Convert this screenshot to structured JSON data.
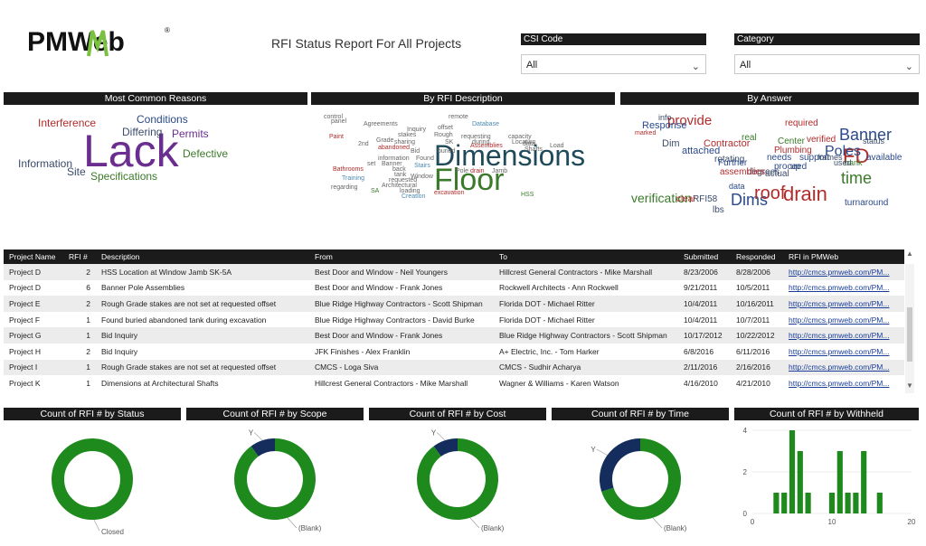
{
  "header": {
    "logo_text": "PMWeb",
    "logo_mark": "®",
    "title": "RFI Status Report For All Projects"
  },
  "filters": [
    {
      "label": "CSI Code",
      "value": "All"
    },
    {
      "label": "Category",
      "value": "All"
    }
  ],
  "clouds": {
    "reasons": {
      "title": "Most Common Reasons",
      "words": [
        {
          "text": "Lack",
          "color": "#6b2d8f"
        },
        {
          "text": "Interference",
          "color": "#b22b2b"
        },
        {
          "text": "Conditions",
          "color": "#2a4a8a"
        },
        {
          "text": "Differing",
          "color": "#3b4b6b"
        },
        {
          "text": "Permits",
          "color": "#6b2d8f"
        },
        {
          "text": "Defective",
          "color": "#3a7a2a"
        },
        {
          "text": "Information",
          "color": "#3b4b6b"
        },
        {
          "text": "Site",
          "color": "#3b4b6b"
        },
        {
          "text": "Specifications",
          "color": "#3a7a2a"
        }
      ]
    },
    "description": {
      "title": "By RFI Description",
      "words": [
        {
          "text": "Dimensions",
          "color": "#1f4a5a"
        },
        {
          "text": "Floor",
          "color": "#3a7a2a"
        },
        {
          "text": "control",
          "color": "#666"
        },
        {
          "text": "panel",
          "color": "#666"
        },
        {
          "text": "Agreements",
          "color": "#666"
        },
        {
          "text": "Inquiry",
          "color": "#666"
        },
        {
          "text": "remote",
          "color": "#666"
        },
        {
          "text": "Database",
          "color": "#4a8ab0"
        },
        {
          "text": "Paint",
          "color": "#b22b2b"
        },
        {
          "text": "stakes",
          "color": "#666"
        },
        {
          "text": "offset",
          "color": "#666"
        },
        {
          "text": "Rough",
          "color": "#666"
        },
        {
          "text": "2nd",
          "color": "#666"
        },
        {
          "text": "Grade",
          "color": "#666"
        },
        {
          "text": "sharing",
          "color": "#666"
        },
        {
          "text": "SK",
          "color": "#666"
        },
        {
          "text": "requesting",
          "color": "#666"
        },
        {
          "text": "capacity",
          "color": "#666"
        },
        {
          "text": "Location",
          "color": "#666"
        },
        {
          "text": "abandoned",
          "color": "#b22b2b"
        },
        {
          "text": "Bid",
          "color": "#666"
        },
        {
          "text": "buried",
          "color": "#666"
        },
        {
          "text": "during",
          "color": "#666"
        },
        {
          "text": "data",
          "color": "#666"
        },
        {
          "text": "Shafts",
          "color": "#666"
        },
        {
          "text": "Load",
          "color": "#666"
        },
        {
          "text": "information",
          "color": "#666"
        },
        {
          "text": "Found",
          "color": "#666"
        },
        {
          "text": "Assemblies",
          "color": "#b22b2b"
        },
        {
          "text": "Banner",
          "color": "#666"
        },
        {
          "text": "set",
          "color": "#666"
        },
        {
          "text": "Stairs",
          "color": "#4a8ab0"
        },
        {
          "text": "Pole",
          "color": "#666"
        },
        {
          "text": "drain",
          "color": "#b22b2b"
        },
        {
          "text": "Jamb",
          "color": "#666"
        },
        {
          "text": "Bathrooms",
          "color": "#b22b2b"
        },
        {
          "text": "back",
          "color": "#666"
        },
        {
          "text": "tank",
          "color": "#666"
        },
        {
          "text": "Window",
          "color": "#666"
        },
        {
          "text": "Training",
          "color": "#4a8ab0"
        },
        {
          "text": "requested",
          "color": "#666"
        },
        {
          "text": "Architectural",
          "color": "#666"
        },
        {
          "text": "regarding",
          "color": "#666"
        },
        {
          "text": "SA",
          "color": "#3a7a2a"
        },
        {
          "text": "loading",
          "color": "#666"
        },
        {
          "text": "Creation",
          "color": "#4a8ab0"
        },
        {
          "text": "excavation",
          "color": "#b22b2b"
        },
        {
          "text": "HSS",
          "color": "#3a7a2a"
        }
      ]
    },
    "answer": {
      "title": "By Answer",
      "words": [
        {
          "text": "drain",
          "color": "#b22b2b"
        },
        {
          "text": "Dims",
          "color": "#2a4a8a"
        },
        {
          "text": "roof",
          "color": "#b22b2b"
        },
        {
          "text": "time",
          "color": "#3a7a2a"
        },
        {
          "text": "FD",
          "color": "#b22b2b"
        },
        {
          "text": "Banner",
          "color": "#2a4a8a"
        },
        {
          "text": "Poles",
          "color": "#2a4a8a"
        },
        {
          "text": "provide",
          "color": "#b22b2b"
        },
        {
          "text": "verification",
          "color": "#3a7a2a"
        },
        {
          "text": "info",
          "color": "#3b4b6b"
        },
        {
          "text": "Response",
          "color": "#2a4a8a"
        },
        {
          "text": "Dim",
          "color": "#3b4b6b"
        },
        {
          "text": "Contractor",
          "color": "#b22b2b"
        },
        {
          "text": "attached",
          "color": "#2a4a8a"
        },
        {
          "text": "required",
          "color": "#b22b2b"
        },
        {
          "text": "verified",
          "color": "#b22b2b"
        },
        {
          "text": "Plumbing",
          "color": "#b22b2b"
        },
        {
          "text": "needs",
          "color": "#2a4a8a"
        },
        {
          "text": "support",
          "color": "#2a4a8a"
        },
        {
          "text": "rotating",
          "color": "#3b4b6b"
        },
        {
          "text": "real",
          "color": "#3a7a2a"
        },
        {
          "text": "Center",
          "color": "#3a7a2a"
        },
        {
          "text": "frames",
          "color": "#3b4b6b"
        },
        {
          "text": "status",
          "color": "#3b4b6b"
        },
        {
          "text": "available",
          "color": "#2a4a8a"
        },
        {
          "text": "bank",
          "color": "#3a7a2a"
        },
        {
          "text": "used",
          "color": "#3b4b6b"
        },
        {
          "text": "up",
          "color": "#3b4b6b"
        },
        {
          "text": "proceed",
          "color": "#2a4a8a"
        },
        {
          "text": "actual",
          "color": "#3b4b6b"
        },
        {
          "text": "degrees",
          "color": "#3b4b6b"
        },
        {
          "text": "Further",
          "color": "#2a4a8a"
        },
        {
          "text": "assemblies",
          "color": "#b22b2b"
        },
        {
          "text": "data",
          "color": "#2a4a8a"
        },
        {
          "text": "RFI58",
          "color": "#3b4b6b"
        },
        {
          "text": "clear",
          "color": "#b22b2b"
        },
        {
          "text": "lbs",
          "color": "#3b4b6b"
        },
        {
          "text": "turnaround",
          "color": "#2a4a8a"
        },
        {
          "text": "marked",
          "color": "#b22b2b"
        }
      ]
    }
  },
  "table": {
    "columns": [
      "Project Name",
      "RFI #",
      "Description",
      "From",
      "To",
      "Submitted",
      "Responded",
      "RFI in PMWeb"
    ],
    "rows": [
      [
        "Project D",
        "2",
        "HSS Location at Window Jamb SK-5A",
        "Best Door and Window - Neil Youngers",
        "Hillcrest General Contractors - Mike Marshall",
        "8/23/2006",
        "8/28/2006",
        "http://cmcs.pmweb.com/PM..."
      ],
      [
        "Project D",
        "6",
        "Banner Pole Assemblies",
        "Best Door and Window - Frank Jones",
        "Rockwell Architects - Ann Rockwell",
        "9/21/2011",
        "10/5/2011",
        "http://cmcs.pmweb.com/PM..."
      ],
      [
        "Project E",
        "2",
        "Rough Grade stakes are not set at requested offset",
        "Blue Ridge Highway Contractors - Scott  Shipman",
        "Florida DOT - Michael Ritter",
        "10/4/2011",
        "10/16/2011",
        "http://cmcs.pmweb.com/PM..."
      ],
      [
        "Project F",
        "1",
        "Found buried abandoned tank during excavation",
        "Blue Ridge Highway Contractors - David  Burke",
        "Florida DOT - Michael Ritter",
        "10/4/2011",
        "10/7/2011",
        "http://cmcs.pmweb.com/PM..."
      ],
      [
        "Project G",
        "1",
        "Bid Inquiry",
        "Best Door and Window - Frank Jones",
        "Blue Ridge Highway Contractors - Scott  Shipman",
        "10/17/2012",
        "10/22/2012",
        "http://cmcs.pmweb.com/PM..."
      ],
      [
        "Project H",
        "2",
        "Bid Inquiry",
        "JFK Finishes - Alex Franklin",
        "A+ Electric, Inc. - Tom Harker",
        "6/8/2016",
        "6/11/2016",
        "http://cmcs.pmweb.com/PM..."
      ],
      [
        "Project I",
        "1",
        "Rough Grade stakes are not set at requested offset",
        "CMCS - Loga  Siva",
        "CMCS - Sudhir Acharya",
        "2/11/2016",
        "2/16/2016",
        "http://cmcs.pmweb.com/PM..."
      ],
      [
        "Project K",
        "1",
        "Dimensions at Architectural Shafts",
        "Hillcrest General Contractors - Mike Marshall",
        "Wagner & Williams - Karen Watson",
        "4/16/2010",
        "4/21/2010",
        "http://cmcs.pmweb.com/PM..."
      ]
    ]
  },
  "chart_data": [
    {
      "type": "pie",
      "title": "Count of RFI # by Status",
      "categories": [
        "Closed"
      ],
      "values": [
        1
      ],
      "colors": [
        "#1e8a1e"
      ]
    },
    {
      "type": "pie",
      "title": "Count of RFI # by Scope",
      "categories": [
        "Y",
        "(Blank)"
      ],
      "values": [
        0.1,
        0.9
      ],
      "colors": [
        "#142d5c",
        "#1e8a1e"
      ]
    },
    {
      "type": "pie",
      "title": "Count of RFI # by Cost",
      "categories": [
        "Y",
        "(Blank)"
      ],
      "values": [
        0.1,
        0.9
      ],
      "colors": [
        "#142d5c",
        "#1e8a1e"
      ]
    },
    {
      "type": "pie",
      "title": "Count of RFI # by Time",
      "categories": [
        "Y",
        "(Blank)"
      ],
      "values": [
        0.3,
        0.7
      ],
      "colors": [
        "#142d5c",
        "#1e8a1e"
      ]
    },
    {
      "type": "bar",
      "title": "Count of RFI # by Withheld",
      "x": [
        3,
        4,
        5,
        6,
        7,
        10,
        11,
        12,
        13,
        14,
        16
      ],
      "values": [
        1,
        1,
        4,
        3,
        1,
        1,
        3,
        1,
        1,
        3,
        1
      ],
      "xlim": [
        0,
        20
      ],
      "ylim": [
        0,
        4
      ],
      "xticks": [
        0,
        10,
        20
      ],
      "yticks": [
        0,
        2,
        4
      ],
      "color": "#1e8a1e"
    }
  ]
}
